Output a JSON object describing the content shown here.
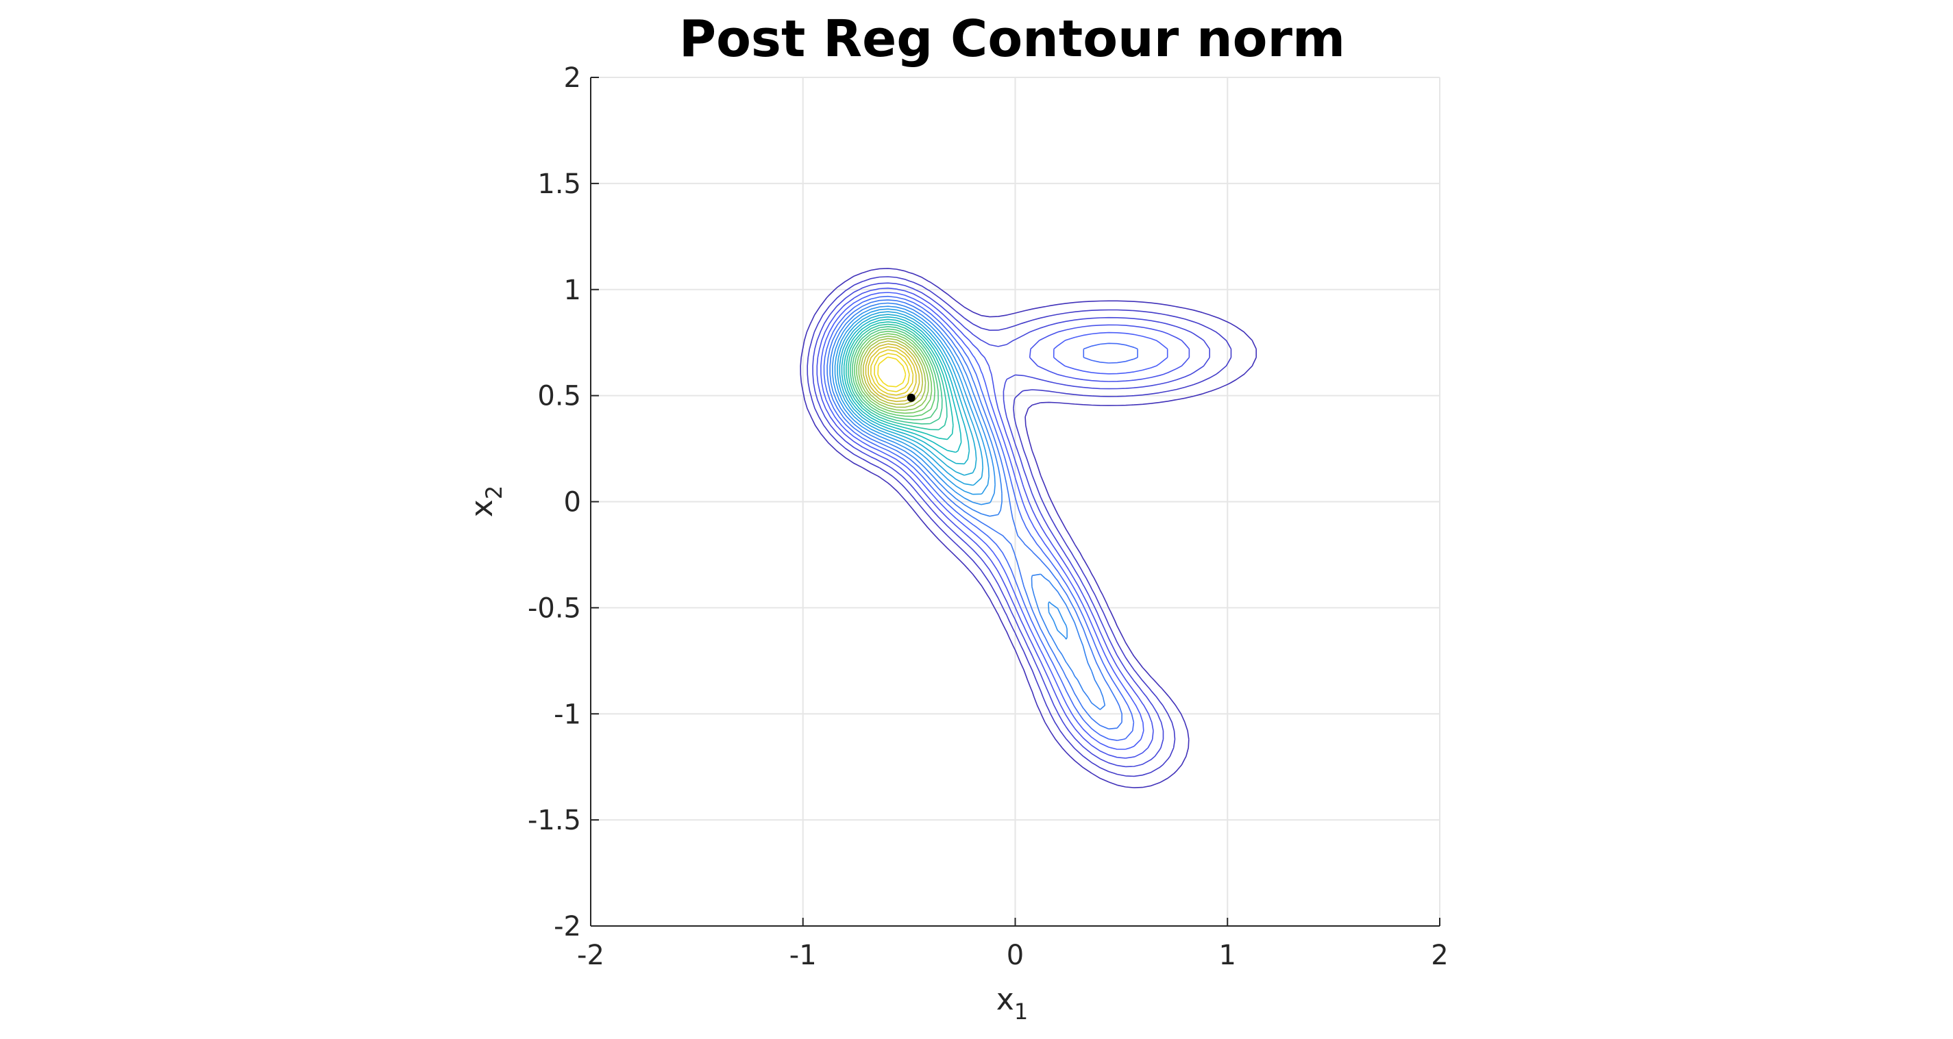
{
  "chart_data": {
    "type": "contour",
    "title": "Post Reg Contour norm",
    "xlabel": {
      "base": "x",
      "sub": "1"
    },
    "ylabel": {
      "base": "x",
      "sub": "2"
    },
    "xlim": [
      -2,
      2
    ],
    "ylim": [
      -2,
      2
    ],
    "xticks": [
      -2,
      -1,
      0,
      1,
      2
    ],
    "yticks": [
      -2,
      -1.5,
      -1,
      -0.5,
      0,
      0.5,
      1,
      1.5,
      2
    ],
    "xtick_labels": [
      "-2",
      "-1",
      "0",
      "1",
      "2"
    ],
    "ytick_labels": [
      "-2",
      "-1.5",
      "-1",
      "-0.5",
      "0",
      "0.5",
      "1",
      "1.5",
      "2"
    ],
    "grid": true,
    "colormap": "parula",
    "colormap_stops": [
      "#3e26a8",
      "#4a5bf8",
      "#2797eb",
      "#13beb8",
      "#66cc6a",
      "#d0ba2e",
      "#f9e51b"
    ],
    "contour_levels": 28,
    "peak": {
      "x": -0.62,
      "y": 0.62
    },
    "marker": {
      "x": -0.49,
      "y": 0.49,
      "color": "#000000"
    },
    "axes_color": "#262626",
    "grid_color": "#e6e6e6"
  }
}
